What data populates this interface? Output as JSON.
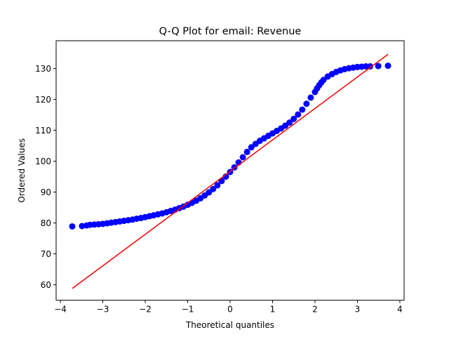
{
  "chart_data": {
    "type": "scatter",
    "title": "Q-Q Plot for email: Revenue",
    "xlabel": "Theoretical quantiles",
    "ylabel": "Ordered Values",
    "xlim": [
      -4.1,
      4.1
    ],
    "ylim": [
      55,
      139
    ],
    "xticks": [
      -4,
      -3,
      -2,
      -1,
      0,
      1,
      2,
      3,
      4
    ],
    "xtick_labels": [
      "−4",
      "−3",
      "−2",
      "−1",
      "0",
      "1",
      "2",
      "3",
      "4"
    ],
    "yticks": [
      60,
      70,
      80,
      90,
      100,
      110,
      120,
      130
    ],
    "ytick_labels": [
      "60",
      "70",
      "80",
      "90",
      "100",
      "110",
      "120",
      "130"
    ],
    "grid": false,
    "series": [
      {
        "kind": "points",
        "color": "#0000ff",
        "x": [
          -3.72,
          -3.49,
          -3.38,
          -3.3,
          -3.2,
          -3.1,
          -3.0,
          -2.9,
          -2.8,
          -2.7,
          -2.6,
          -2.5,
          -2.4,
          -2.3,
          -2.2,
          -2.1,
          -2.0,
          -1.9,
          -1.8,
          -1.7,
          -1.6,
          -1.5,
          -1.4,
          -1.3,
          -1.2,
          -1.1,
          -1.0,
          -0.9,
          -0.8,
          -0.7,
          -0.6,
          -0.5,
          -0.4,
          -0.3,
          -0.2,
          -0.1,
          0.0,
          0.1,
          0.2,
          0.3,
          0.4,
          0.5,
          0.6,
          0.7,
          0.8,
          0.9,
          1.0,
          1.1,
          1.2,
          1.3,
          1.4,
          1.5,
          1.6,
          1.7,
          1.8,
          1.9,
          2.0,
          2.05,
          2.1,
          2.15,
          2.2,
          2.3,
          2.4,
          2.5,
          2.6,
          2.7,
          2.8,
          2.9,
          3.0,
          3.1,
          3.2,
          3.3,
          3.49,
          3.72
        ],
        "y": [
          78.9,
          79.0,
          79.2,
          79.4,
          79.5,
          79.6,
          79.7,
          79.9,
          80.1,
          80.3,
          80.5,
          80.7,
          80.9,
          81.1,
          81.4,
          81.6,
          81.9,
          82.2,
          82.5,
          82.8,
          83.1,
          83.5,
          83.9,
          84.3,
          84.8,
          85.3,
          85.9,
          86.5,
          87.2,
          88.0,
          88.9,
          89.9,
          91.0,
          92.2,
          93.6,
          95.0,
          96.5,
          98.0,
          99.6,
          101.3,
          103.0,
          104.5,
          105.6,
          106.6,
          107.4,
          108.2,
          109.0,
          109.8,
          110.6,
          111.5,
          112.5,
          113.7,
          115.1,
          116.7,
          118.6,
          120.6,
          122.4,
          123.6,
          124.6,
          125.5,
          126.3,
          127.4,
          128.2,
          128.9,
          129.4,
          129.8,
          130.1,
          130.3,
          130.5,
          130.6,
          130.7,
          130.7,
          130.8,
          130.9
        ]
      },
      {
        "kind": "line",
        "color": "#ff0000",
        "x": [
          -3.72,
          3.72
        ],
        "y": [
          58.8,
          134.6
        ]
      }
    ]
  }
}
